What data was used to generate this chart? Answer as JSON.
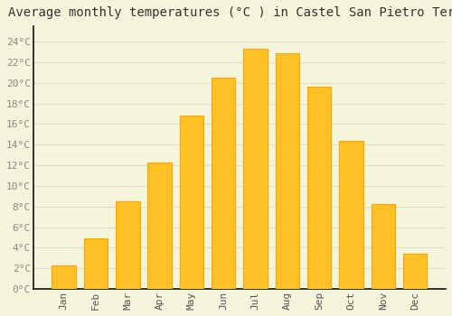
{
  "title": "Average monthly temperatures (°C ) in Castel San Pietro Terme",
  "months": [
    "Jan",
    "Feb",
    "Mar",
    "Apr",
    "May",
    "Jun",
    "Jul",
    "Aug",
    "Sep",
    "Oct",
    "Nov",
    "Dec"
  ],
  "values": [
    2.3,
    4.9,
    8.5,
    12.3,
    16.8,
    20.5,
    23.3,
    22.9,
    19.6,
    14.4,
    8.2,
    3.4
  ],
  "bar_color": "#FFC125",
  "bar_edge_color": "#FFA500",
  "background_color": "#F5F5DC",
  "grid_color": "#DDDDCC",
  "ytick_labels": [
    "0°C",
    "2°C",
    "4°C",
    "6°C",
    "8°C",
    "10°C",
    "12°C",
    "14°C",
    "16°C",
    "18°C",
    "20°C",
    "22°C",
    "24°C"
  ],
  "ytick_values": [
    0,
    2,
    4,
    6,
    8,
    10,
    12,
    14,
    16,
    18,
    20,
    22,
    24
  ],
  "ylim": [
    0,
    25.5
  ],
  "title_fontsize": 10,
  "tick_fontsize": 8,
  "font_family": "monospace",
  "left_spine_color": "#111111",
  "bottom_spine_color": "#111111",
  "xtick_color": "#555555",
  "ytick_color": "#888888"
}
